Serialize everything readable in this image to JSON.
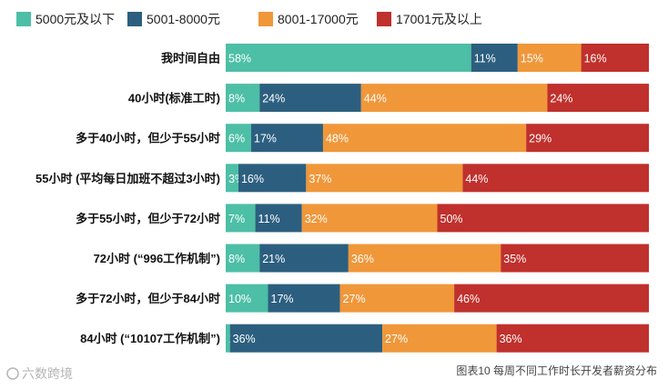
{
  "chart_data": {
    "type": "bar",
    "orientation": "horizontal",
    "stacked": true,
    "percent": true,
    "legend_position": "top",
    "grid": false,
    "categories": [
      "我时间自由",
      "40小时(标准工时)",
      "多于40小时，但少于55小时",
      "55小时 (平均每日加班不超过3小时)",
      "多于55小时，但少于72小时",
      "72小时 (“996工作机制”)",
      "多于72小时，但少于84小时",
      "84小时 (“10107工作机制”)"
    ],
    "series": [
      {
        "name": "5000元及以下",
        "color": "#4dbfa6",
        "values": [
          58,
          8,
          6,
          3,
          7,
          8,
          10,
          1
        ]
      },
      {
        "name": "5001-8000元",
        "color": "#2c5f7f",
        "values": [
          11,
          24,
          17,
          16,
          11,
          21,
          17,
          36
        ]
      },
      {
        "name": "8001-17000元",
        "color": "#f0973a",
        "values": [
          15,
          44,
          48,
          37,
          32,
          36,
          27,
          27
        ]
      },
      {
        "name": "17001元及以上",
        "color": "#c0302c",
        "values": [
          16,
          24,
          29,
          44,
          50,
          35,
          46,
          36
        ]
      }
    ],
    "value_suffix": "%"
  },
  "caption": "图表10 每周不同工作时长开发者薪资分布",
  "watermark": "六数跨境"
}
